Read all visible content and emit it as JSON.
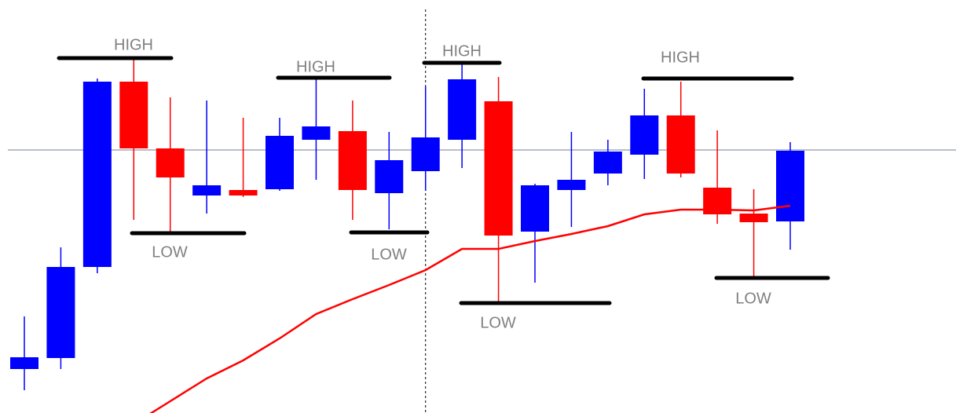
{
  "chart_data": {
    "type": "candlestick",
    "ylim": [
      0,
      526
    ],
    "open": [
      56,
      70,
      186,
      422,
      337,
      277,
      284,
      285,
      348,
      359,
      280,
      308,
      348,
      397,
      231,
      284,
      305,
      329,
      379,
      287,
      254,
      244
    ],
    "high": [
      123,
      211,
      426,
      451,
      402,
      398,
      376,
      376,
      426,
      398,
      358,
      416,
      446,
      428,
      292,
      358,
      348,
      413,
      422,
      360,
      285,
      345
    ],
    "low": [
      29,
      56,
      178,
      246,
      229,
      254,
      275,
      283,
      297,
      246,
      234,
      283,
      312,
      141,
      166,
      237,
      290,
      298,
      300,
      241,
      173,
      208
    ],
    "close": [
      71,
      186,
      422,
      337,
      300,
      290,
      277,
      353,
      365,
      284,
      322,
      351,
      425,
      226,
      290,
      297,
      333,
      379,
      305,
      253,
      243,
      334
    ],
    "up_color": "#0000ff",
    "down_color": "#ff0000",
    "moving_average": {
      "color": "#ff0000",
      "values": [
        null,
        null,
        null,
        -14,
        15,
        44,
        67,
        95,
        126,
        145,
        163,
        182,
        209,
        209,
        219,
        228,
        238,
        253,
        259,
        259,
        258,
        264
      ]
    },
    "level_line": {
      "value": 335,
      "color": "#708090"
    },
    "vline_index": 11,
    "annotations": [
      {
        "text": "HIGH",
        "value": 452
      },
      {
        "text": "HIGH",
        "value": 427
      },
      {
        "text": "HIGH",
        "value": 446
      },
      {
        "text": "HIGH",
        "value": 426
      },
      {
        "text": "LOW",
        "value": 229
      },
      {
        "text": "LOW",
        "value": 230
      },
      {
        "text": "LOW",
        "value": 140
      },
      {
        "text": "LOW",
        "value": 172
      }
    ]
  }
}
